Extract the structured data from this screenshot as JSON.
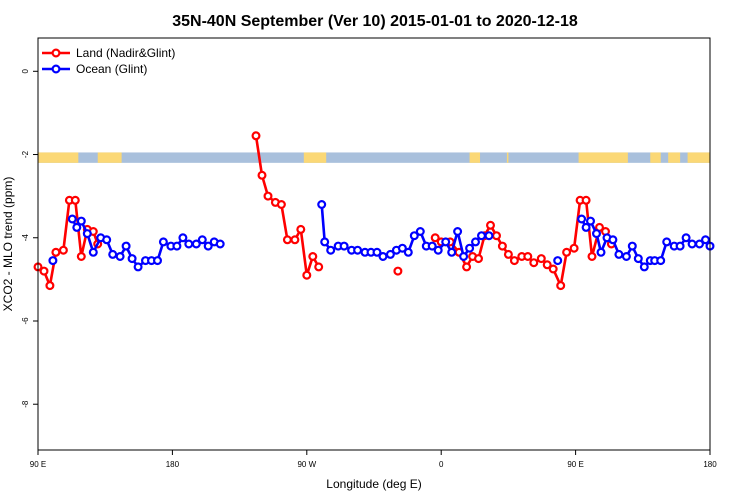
{
  "chart_data": {
    "type": "line",
    "title": "35N-40N September (Ver 10)   2015-01-01 to 2020-12-18",
    "xlabel": "Longitude (deg E)",
    "ylabel": "XCO2 - MLO trend (ppm)",
    "xlim": [
      90,
      540
    ],
    "ylim": [
      -9.1,
      0.8
    ],
    "x_ticks": [
      {
        "value": 90,
        "label": "90 E"
      },
      {
        "value": 180,
        "label": "180"
      },
      {
        "value": 270,
        "label": "90 W"
      },
      {
        "value": 360,
        "label": "0"
      },
      {
        "value": 450,
        "label": "90 E"
      },
      {
        "value": 540,
        "label": "180"
      }
    ],
    "y_ticks": [
      {
        "value": 0,
        "label": "0"
      },
      {
        "value": -2,
        "label": "-2"
      },
      {
        "value": -4,
        "label": "-4"
      },
      {
        "value": -6,
        "label": "-6"
      },
      {
        "value": -8,
        "label": "-8"
      }
    ],
    "legend_position": "top-left",
    "land_ocean_band": {
      "y_range": [
        -2.2,
        -1.95
      ],
      "land_color": "#FBD876",
      "ocean_color": "#A9C0DC",
      "land_segments": [
        [
          90,
          117
        ],
        [
          130,
          146
        ],
        [
          268,
          283
        ],
        [
          379,
          386
        ],
        [
          404,
          405
        ],
        [
          452,
          485
        ],
        [
          500,
          507
        ],
        [
          512,
          520
        ],
        [
          525,
          540
        ]
      ]
    },
    "series": [
      {
        "name": "Land (Nadir&Glint)",
        "color": "#FF0000",
        "segments": [
          [
            [
              90,
              -4.7
            ],
            [
              94,
              -4.8
            ],
            [
              98,
              -5.15
            ],
            [
              102,
              -4.35
            ],
            [
              107,
              -4.3
            ],
            [
              111,
              -3.1
            ],
            [
              115,
              -3.1
            ],
            [
              119,
              -4.45
            ],
            [
              123,
              -3.8
            ],
            [
              127,
              -3.85
            ],
            [
              130,
              -4.15
            ]
          ],
          [
            [
              236,
              -1.55
            ],
            [
              240,
              -2.5
            ],
            [
              244,
              -3.0
            ],
            [
              249,
              -3.15
            ],
            [
              253,
              -3.2
            ],
            [
              257,
              -4.05
            ],
            [
              262,
              -4.05
            ],
            [
              266,
              -3.8
            ],
            [
              270,
              -4.9
            ],
            [
              274,
              -4.45
            ],
            [
              278,
              -4.7
            ]
          ],
          [
            [
              331,
              -4.8
            ]
          ],
          [
            [
              356,
              -4.0
            ],
            [
              360,
              -4.1
            ],
            [
              366,
              -4.1
            ],
            [
              372,
              -4.35
            ],
            [
              377,
              -4.7
            ],
            [
              381,
              -4.45
            ],
            [
              385,
              -4.5
            ],
            [
              389,
              -3.95
            ],
            [
              393,
              -3.7
            ],
            [
              397,
              -3.95
            ],
            [
              401,
              -4.2
            ],
            [
              405,
              -4.4
            ],
            [
              409,
              -4.55
            ],
            [
              414,
              -4.45
            ],
            [
              418,
              -4.45
            ],
            [
              422,
              -4.6
            ],
            [
              427,
              -4.5
            ],
            [
              431,
              -4.65
            ],
            [
              435,
              -4.75
            ],
            [
              440,
              -5.15
            ],
            [
              444,
              -4.35
            ],
            [
              449,
              -4.25
            ],
            [
              453,
              -3.1
            ],
            [
              457,
              -3.1
            ],
            [
              461,
              -4.45
            ],
            [
              466,
              -3.75
            ],
            [
              470,
              -3.85
            ],
            [
              474,
              -4.15
            ]
          ]
        ]
      },
      {
        "name": "Ocean (Glint)",
        "color": "#0000FF",
        "segments": [
          [
            [
              100,
              -4.55
            ]
          ],
          [
            [
              113,
              -3.55
            ],
            [
              116,
              -3.75
            ],
            [
              119,
              -3.6
            ],
            [
              123,
              -3.9
            ],
            [
              127,
              -4.35
            ],
            [
              132,
              -4.0
            ],
            [
              136,
              -4.05
            ],
            [
              140,
              -4.4
            ],
            [
              145,
              -4.45
            ],
            [
              149,
              -4.2
            ],
            [
              153,
              -4.5
            ],
            [
              157,
              -4.7
            ],
            [
              162,
              -4.55
            ],
            [
              166,
              -4.55
            ],
            [
              170,
              -4.55
            ],
            [
              174,
              -4.1
            ],
            [
              179,
              -4.2
            ],
            [
              183,
              -4.2
            ],
            [
              187,
              -4.0
            ],
            [
              191,
              -4.15
            ],
            [
              196,
              -4.15
            ],
            [
              200,
              -4.05
            ],
            [
              204,
              -4.2
            ],
            [
              208,
              -4.1
            ],
            [
              212,
              -4.15
            ]
          ],
          [
            [
              280,
              -3.2
            ],
            [
              282,
              -4.1
            ],
            [
              286,
              -4.3
            ],
            [
              291,
              -4.2
            ],
            [
              295,
              -4.2
            ],
            [
              300,
              -4.3
            ],
            [
              304,
              -4.3
            ],
            [
              309,
              -4.35
            ],
            [
              313,
              -4.35
            ],
            [
              317,
              -4.35
            ],
            [
              321,
              -4.45
            ],
            [
              326,
              -4.4
            ],
            [
              330,
              -4.3
            ],
            [
              334,
              -4.25
            ],
            [
              338,
              -4.35
            ],
            [
              342,
              -3.95
            ],
            [
              346,
              -3.85
            ],
            [
              350,
              -4.2
            ],
            [
              354,
              -4.2
            ],
            [
              358,
              -4.3
            ],
            [
              363,
              -4.1
            ],
            [
              367,
              -4.35
            ],
            [
              371,
              -3.85
            ],
            [
              375,
              -4.45
            ],
            [
              379,
              -4.25
            ],
            [
              383,
              -4.1
            ],
            [
              387,
              -3.95
            ],
            [
              392,
              -3.95
            ]
          ],
          [
            [
              438,
              -4.55
            ]
          ],
          [
            [
              454,
              -3.55
            ],
            [
              457,
              -3.75
            ],
            [
              460,
              -3.6
            ],
            [
              464,
              -3.9
            ],
            [
              467,
              -4.35
            ],
            [
              471,
              -4.0
            ],
            [
              475,
              -4.05
            ],
            [
              479,
              -4.4
            ],
            [
              484,
              -4.45
            ],
            [
              488,
              -4.2
            ],
            [
              492,
              -4.5
            ],
            [
              496,
              -4.7
            ],
            [
              500,
              -4.55
            ],
            [
              503,
              -4.55
            ],
            [
              507,
              -4.55
            ],
            [
              511,
              -4.1
            ],
            [
              516,
              -4.2
            ],
            [
              520,
              -4.2
            ],
            [
              524,
              -4.0
            ],
            [
              528,
              -4.15
            ],
            [
              533,
              -4.15
            ],
            [
              537,
              -4.05
            ],
            [
              540,
              -4.2
            ]
          ]
        ]
      }
    ]
  }
}
